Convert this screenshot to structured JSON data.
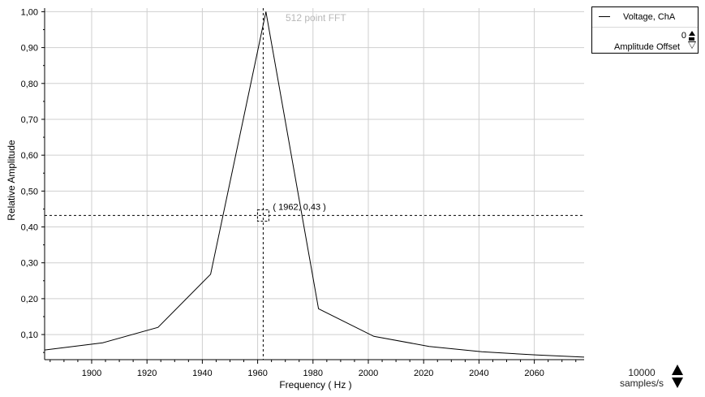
{
  "chart_data": {
    "type": "line",
    "title": "512 point FFT",
    "xlabel": "Frequency ( Hz )",
    "ylabel": "Relative Amplitude",
    "xlim": [
      1883,
      2078
    ],
    "ylim": [
      0.03,
      1.01
    ],
    "x_ticks": [
      1900,
      1920,
      1940,
      1960,
      1980,
      2000,
      2020,
      2040,
      2060
    ],
    "x_tick_labels": [
      "1900",
      "1920",
      "1940",
      "1960",
      "1980",
      "2000",
      "2020",
      "2040",
      "2060"
    ],
    "y_ticks": [
      0.1,
      0.2,
      0.3,
      0.4,
      0.5,
      0.6,
      0.7,
      0.8,
      0.9,
      1.0
    ],
    "y_tick_labels": [
      "0,10",
      "0,20",
      "0,30",
      "0,40",
      "0,50",
      "0,60",
      "0,70",
      "0,80",
      "0,90",
      "1,00"
    ],
    "grid": true,
    "series": [
      {
        "name": "Voltage, ChA",
        "color": "#000000",
        "x": [
          1883,
          1904,
          1924,
          1943,
          1963,
          1982,
          2002,
          2022,
          2041,
          2061,
          2078
        ],
        "y": [
          0.057,
          0.077,
          0.12,
          0.268,
          1.0,
          0.172,
          0.095,
          0.067,
          0.052,
          0.043,
          0.037
        ]
      }
    ],
    "cursor": {
      "x": 1962,
      "y": 0.432,
      "label": "( 1962, 0,43 )"
    }
  },
  "legend": {
    "series_name": "Voltage, ChA",
    "offset_value": "0",
    "offset_label": "Amplitude Offset"
  },
  "sampling": {
    "value": "10000",
    "unit": "samples/s"
  }
}
